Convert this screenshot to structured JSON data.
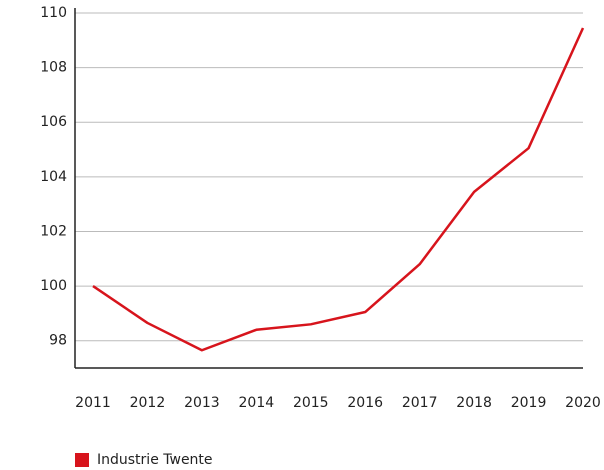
{
  "chart_data": {
    "type": "line",
    "categories": [
      "2011",
      "2012",
      "2013",
      "2014",
      "2015",
      "2016",
      "2017",
      "2018",
      "2019",
      "2020"
    ],
    "series": [
      {
        "name": "Industrie Twente",
        "color": "#d7141c",
        "values": [
          100,
          98.65,
          97.65,
          98.4,
          98.6,
          99.05,
          100.8,
          103.45,
          105.05,
          109.45
        ]
      }
    ],
    "ylim": [
      97,
      110
    ],
    "yticks": [
      98,
      100,
      102,
      104,
      106,
      108,
      110
    ],
    "grid": true,
    "legend": "bottom-left"
  }
}
